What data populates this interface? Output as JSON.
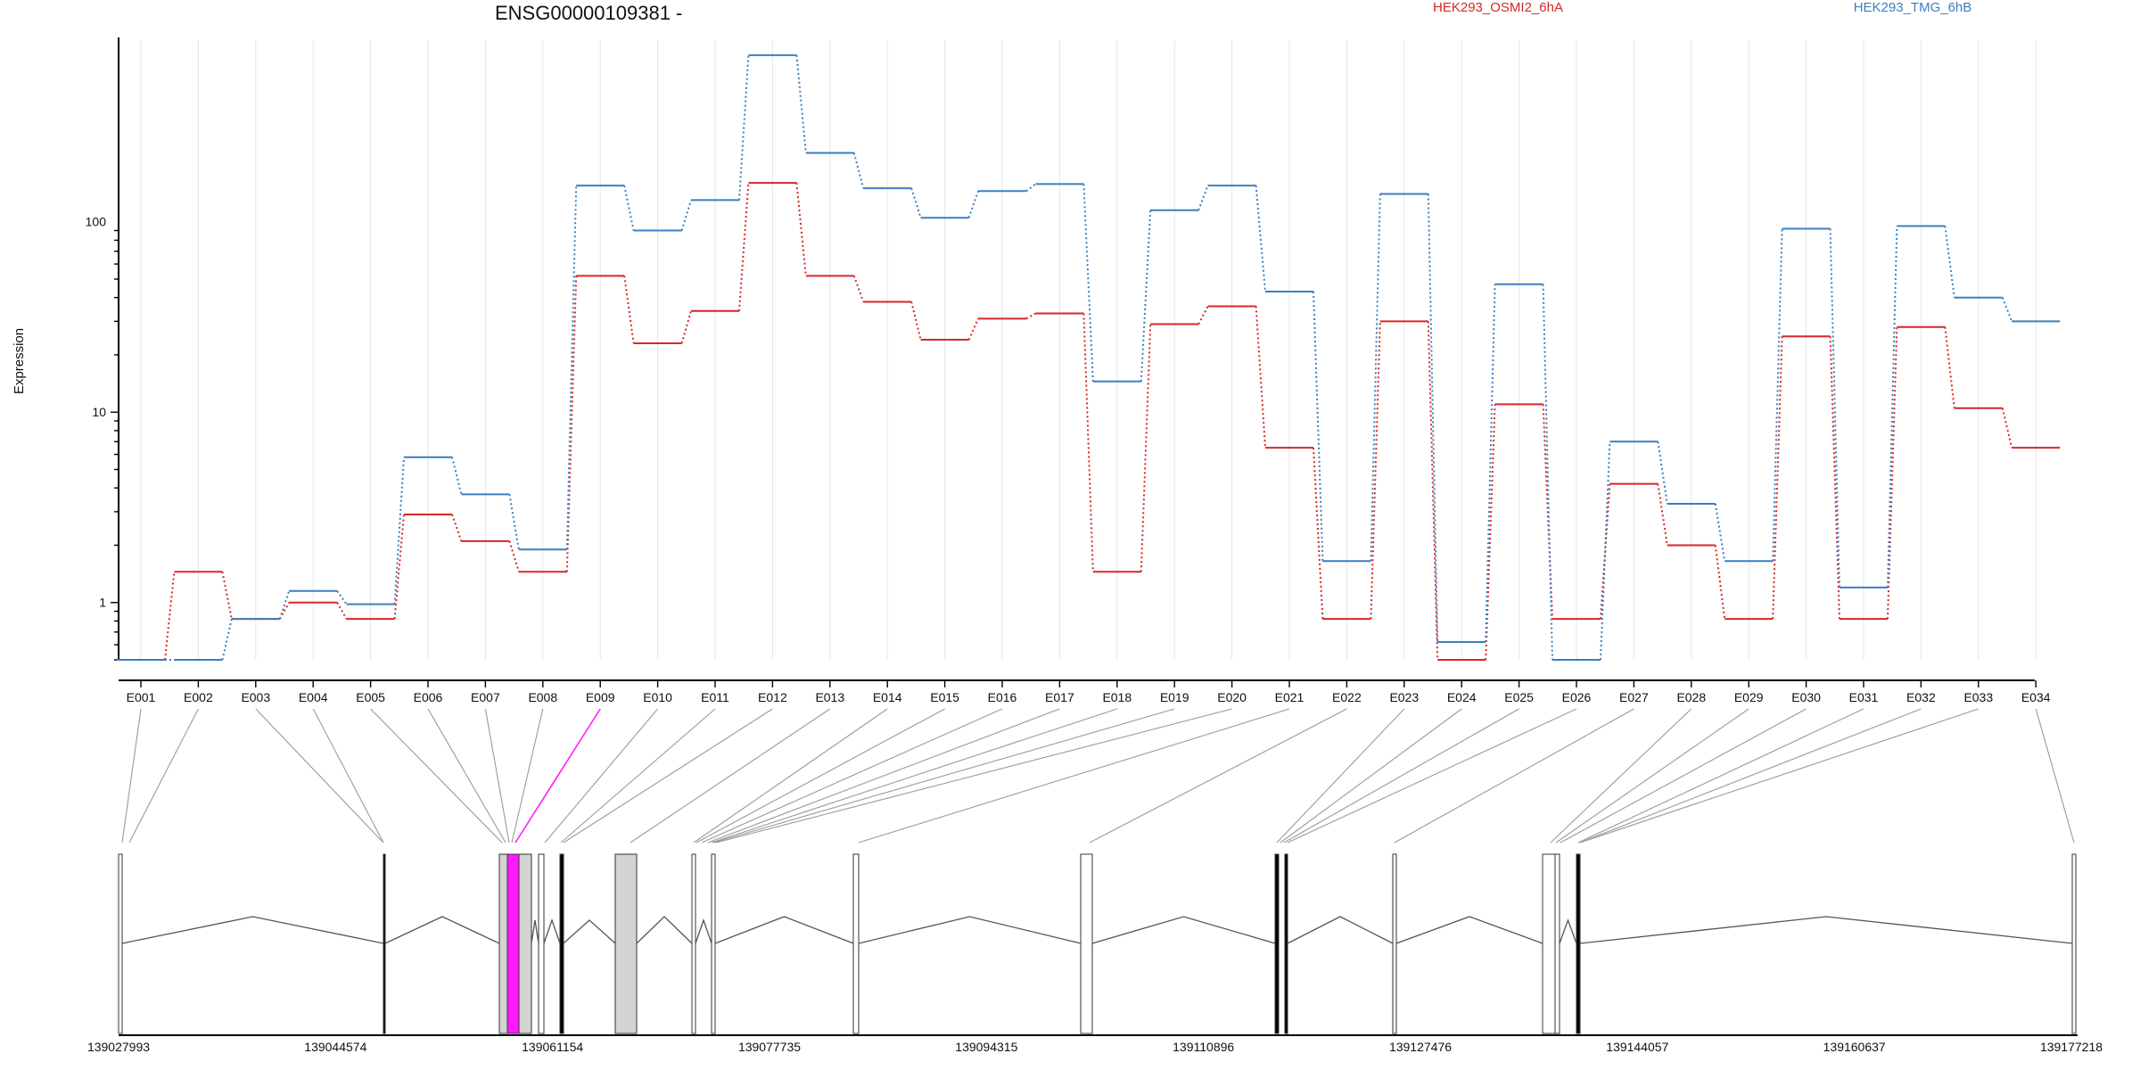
{
  "chart_data": {
    "type": "line",
    "title": "ENSG00000109381 -",
    "ylabel": "Expression",
    "y_scale": "log",
    "ylim": [
      0.5,
      900
    ],
    "y_ticks": [
      1,
      10,
      100
    ],
    "y_tick_labels": [
      "1",
      "10",
      "100"
    ],
    "categories": [
      "E001",
      "E002",
      "E003",
      "E004",
      "E005",
      "E006",
      "E007",
      "E008",
      "E009",
      "E010",
      "E011",
      "E012",
      "E013",
      "E014",
      "E015",
      "E016",
      "E017",
      "E018",
      "E019",
      "E020",
      "E021",
      "E022",
      "E023",
      "E024",
      "E025",
      "E026",
      "E027",
      "E028",
      "E029",
      "E030",
      "E031",
      "E032",
      "E033",
      "E034"
    ],
    "series": [
      {
        "name": "HEK293_OSMI2_6hA",
        "color": "#d62728",
        "values": [
          0.5,
          1.45,
          0.82,
          1.0,
          0.82,
          2.9,
          2.1,
          1.45,
          52,
          23,
          34,
          160,
          52,
          38,
          24,
          31,
          33,
          1.45,
          29,
          36,
          6.5,
          0.82,
          30,
          0.5,
          11,
          0.82,
          4.2,
          2.0,
          0.82,
          25,
          0.82,
          28,
          10.5,
          6.5
        ]
      },
      {
        "name": "HEK293_TMG_6hB",
        "color": "#3b7fbf",
        "values": [
          0.5,
          0.5,
          0.82,
          1.15,
          0.98,
          5.8,
          3.7,
          1.9,
          155,
          90,
          130,
          750,
          230,
          150,
          105,
          145,
          158,
          14.5,
          115,
          155,
          43,
          1.65,
          140,
          0.62,
          47,
          0.5,
          7.0,
          3.3,
          1.65,
          92,
          1.2,
          95,
          40,
          30
        ]
      }
    ],
    "legend_position": "top",
    "grid": "vertical",
    "gene_model": {
      "coordinates": [
        "139027993",
        "139044574",
        "139061154",
        "139077735",
        "139094315",
        "139110896",
        "139127476",
        "139144057",
        "139160637",
        "139177218"
      ],
      "highlighted_exon": "E009",
      "highlight_color": "#ff1aff"
    }
  },
  "colors": {
    "axis": "#000000",
    "grid": "#e6e6e6",
    "connector": "#9a9a9a",
    "exon_fill": "#d3d3d3",
    "intron_line": "#555555"
  }
}
